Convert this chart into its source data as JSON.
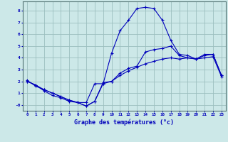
{
  "xlabel": "Graphe des températures (°c)",
  "background_color": "#cce8e8",
  "grid_color": "#9bbfbf",
  "line_color": "#0000bb",
  "hours": [
    0,
    1,
    2,
    3,
    4,
    5,
    6,
    7,
    8,
    9,
    10,
    11,
    12,
    13,
    14,
    15,
    16,
    17,
    18,
    19,
    20,
    21,
    22,
    23
  ],
  "temp_line1": [
    2.0,
    1.7,
    1.2,
    0.8,
    0.6,
    0.3,
    0.2,
    0.2,
    1.8,
    1.8,
    2.0,
    2.7,
    3.1,
    3.3,
    4.5,
    4.7,
    4.8,
    5.0,
    4.2,
    4.0,
    3.9,
    4.2,
    4.3,
    2.5
  ],
  "temp_line2": [
    2.1,
    1.6,
    1.3,
    1.0,
    0.7,
    0.4,
    0.2,
    -0.1,
    0.3,
    1.8,
    4.4,
    6.3,
    7.2,
    8.2,
    8.3,
    8.2,
    7.2,
    5.5,
    4.3,
    4.2,
    3.9,
    4.3,
    4.3,
    2.5
  ],
  "temp_line3": [
    2.0,
    1.7,
    1.3,
    1.0,
    0.7,
    0.4,
    0.2,
    -0.1,
    0.3,
    1.9,
    2.0,
    2.5,
    2.9,
    3.2,
    3.5,
    3.7,
    3.9,
    4.0,
    3.9,
    4.0,
    3.9,
    4.0,
    4.1,
    2.4
  ],
  "ylim": [
    -0.5,
    8.8
  ],
  "xlim": [
    -0.5,
    23.5
  ],
  "yticks": [
    0,
    1,
    2,
    3,
    4,
    5,
    6,
    7,
    8
  ],
  "ytick_labels": [
    "-0",
    "1",
    "2",
    "3",
    "4",
    "5",
    "6",
    "7",
    "8"
  ],
  "xticks": [
    0,
    1,
    2,
    3,
    4,
    5,
    6,
    7,
    8,
    9,
    10,
    11,
    12,
    13,
    14,
    15,
    16,
    17,
    18,
    19,
    20,
    21,
    22,
    23
  ]
}
